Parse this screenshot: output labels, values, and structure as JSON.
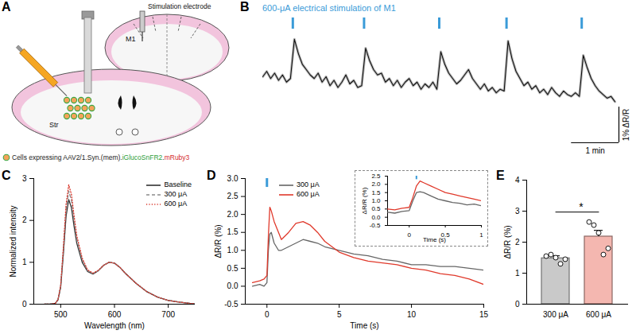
{
  "diagram": {
    "panel": "A",
    "electrode": "Stimulation electrode",
    "region_cortex": "M1",
    "region_striatum": "Str",
    "legend": [
      {
        "text": "Cells expressing AAV2/1.Syn.(mem).",
        "color": "#222222"
      },
      {
        "text": "iGlucoSnFR2",
        "color": "#2e9e3a"
      },
      {
        "text": ".",
        "color": "#222222"
      },
      {
        "text": "mRuby3",
        "color": "#d42a2a"
      }
    ]
  },
  "chart_data": [
    {
      "panel": "B",
      "type": "line",
      "color": "#111111",
      "tick_labels": false,
      "x": [
        0,
        5,
        10,
        15,
        20,
        25,
        30,
        35,
        40,
        45,
        50,
        55,
        60,
        65,
        70,
        75,
        80,
        85,
        90,
        95,
        100,
        105,
        110,
        115,
        120,
        125,
        130,
        135,
        140,
        145,
        150,
        155,
        160,
        165,
        170,
        175,
        180,
        185,
        190,
        195,
        200,
        205,
        210,
        215,
        220,
        225,
        230,
        235,
        240,
        245,
        250,
        255,
        260,
        265,
        270,
        275,
        280,
        285,
        290,
        295,
        300,
        305,
        310,
        315,
        320,
        325,
        330,
        335,
        340,
        345,
        350,
        355,
        360,
        365,
        370,
        375,
        380,
        385,
        390,
        395,
        400,
        405,
        410,
        415,
        420,
        425,
        430,
        435,
        440,
        445
      ],
      "values": [
        0.25,
        0.4,
        0.2,
        0.35,
        0.15,
        0.3,
        0.1,
        0.2,
        1.3,
        0.9,
        0.6,
        0.45,
        0.3,
        0.2,
        0.35,
        0.1,
        0.25,
        0,
        0.15,
        -0.05,
        0.1,
        0.3,
        0.05,
        0.15,
        -0.05,
        0,
        1.05,
        0.7,
        0.45,
        0.3,
        0.35,
        0.1,
        0.2,
        0,
        0.15,
        -0.05,
        0.1,
        0.2,
        0,
        0.1,
        -0.1,
        0.05,
        -0.05,
        0.1,
        -0.1,
        0.95,
        0.6,
        0.35,
        0.2,
        0.05,
        0.15,
        0.3,
        0.45,
        0.2,
        0.05,
        -0.1,
        0.05,
        -0.15,
        -0.05,
        -0.2,
        -0.1,
        -0.15,
        1.25,
        0.75,
        0.4,
        0.2,
        0,
        0.1,
        -0.1,
        0,
        -0.2,
        -0.1,
        -0.25,
        -0.05,
        -0.2,
        -0.3,
        -0.15,
        -0.25,
        -0.3,
        -0.2,
        -0.3,
        0.85,
        0.5,
        0.2,
        0,
        -0.15,
        -0.25,
        -0.35,
        -0.3,
        -0.45
      ],
      "xlim": [
        0,
        450
      ],
      "ylim": [
        -1.6,
        1.9
      ],
      "stimuli": {
        "x": [
          38,
          128,
          223,
          308,
          403
        ],
        "label": "600-μA electrical stimulation of M1",
        "color": "#3a9bd8"
      },
      "scale_bars": [
        {
          "axis": "x",
          "value": 60,
          "label": "1 min"
        },
        {
          "axis": "y",
          "value": 1,
          "label": "1% ΔR/R"
        }
      ]
    },
    {
      "panel": "C",
      "type": "line",
      "legend": "top-right",
      "x": [
        470,
        480,
        490,
        495,
        500,
        505,
        510,
        515,
        520,
        525,
        530,
        540,
        550,
        560,
        570,
        580,
        590,
        600,
        610,
        620,
        640,
        660,
        680,
        700,
        720,
        740,
        750
      ],
      "series": [
        {
          "name": "Baseline",
          "color": "#333333",
          "line_style": "solid",
          "values": [
            0,
            0,
            0.02,
            0.1,
            0.4,
            1.2,
            2.1,
            2.5,
            2.3,
            1.85,
            1.45,
            1,
            0.78,
            0.72,
            0.8,
            0.93,
            1,
            0.98,
            0.88,
            0.74,
            0.5,
            0.3,
            0.17,
            0.09,
            0.05,
            0.02,
            0.01
          ]
        },
        {
          "name": "300 μA",
          "color": "#8a8a8a",
          "line_style": "dashed",
          "values": [
            0,
            0,
            0.02,
            0.11,
            0.43,
            1.3,
            2.27,
            2.7,
            2.48,
            1.99,
            1.55,
            1.06,
            0.8,
            0.73,
            0.8,
            0.93,
            1,
            0.98,
            0.88,
            0.74,
            0.5,
            0.3,
            0.17,
            0.09,
            0.05,
            0.02,
            0.01
          ]
        },
        {
          "name": "600 μA",
          "color": "#d9362b",
          "line_style": "dotted",
          "values": [
            0,
            0,
            0.02,
            0.11,
            0.45,
            1.36,
            2.38,
            2.85,
            2.62,
            2.1,
            1.63,
            1.1,
            0.82,
            0.74,
            0.81,
            0.93,
            1,
            0.98,
            0.88,
            0.74,
            0.5,
            0.3,
            0.17,
            0.09,
            0.05,
            0.02,
            0.01
          ]
        }
      ],
      "xlim": [
        450,
        750
      ],
      "xticks": [
        500,
        600,
        700
      ],
      "ylim": [
        0,
        3
      ],
      "yticks": [
        0,
        1,
        2,
        3
      ],
      "x_label": "Wavelength (nm)",
      "y_label": "Normalized intensity"
    },
    {
      "panel": "D",
      "type": "line",
      "legend": "top-left",
      "x": [
        -1,
        -0.5,
        -0.2,
        0,
        0.1,
        0.2,
        0.3,
        0.5,
        0.8,
        1,
        1.5,
        2,
        2.5,
        3,
        3.5,
        4,
        5,
        6,
        7,
        8,
        9,
        10,
        11,
        12,
        13,
        14,
        15
      ],
      "series": [
        {
          "name": "300 μA",
          "color": "#666666",
          "line_style": "solid",
          "values": [
            0,
            0.05,
            0,
            0.1,
            1,
            1.45,
            1.5,
            1.2,
            1,
            1,
            1.1,
            1.2,
            1.3,
            1.25,
            1.2,
            1.1,
            1,
            0.9,
            0.85,
            0.75,
            0.7,
            0.6,
            0.6,
            0.55,
            0.55,
            0.5,
            0.45
          ]
        },
        {
          "name": "600 μA",
          "color": "#e0392b",
          "line_style": "solid",
          "values": [
            0.1,
            0.15,
            0.2,
            0.3,
            1.4,
            2.2,
            2.1,
            1.8,
            1.5,
            1.3,
            1.5,
            1.75,
            1.8,
            1.7,
            1.5,
            1.25,
            0.95,
            0.8,
            0.7,
            0.65,
            0.6,
            0.5,
            0.45,
            0.35,
            0.3,
            0.2,
            0.05
          ]
        }
      ],
      "xlim": [
        -1.5,
        15
      ],
      "xticks": [
        0,
        5,
        10,
        15
      ],
      "ylim": [
        -0.5,
        3
      ],
      "yticks": [
        -0.5,
        {
          "value": 0,
          "label": "0.0"
        },
        0.5,
        {
          "value": 1,
          "label": "1.0"
        },
        1.5,
        {
          "value": 2,
          "label": "2.0"
        },
        2.5,
        {
          "value": 3,
          "label": "3.0"
        }
      ],
      "x_label": "Time (s)",
      "y_label": "ΔR/R (%)",
      "stimuli": {
        "x": [
          0
        ],
        "color": "#3a9bd8"
      }
    },
    {
      "inset_of": "D",
      "type": "line",
      "x": [
        -0.3,
        -0.2,
        -0.1,
        0,
        0.05,
        0.1,
        0.15,
        0.2,
        0.3,
        0.4,
        0.5,
        0.6,
        0.7,
        0.8,
        0.9,
        1
      ],
      "series": [
        {
          "name": "300 μA",
          "color": "#666666",
          "line_style": "solid",
          "values": [
            0.3,
            0.25,
            0.35,
            0.4,
            1,
            1.5,
            1.55,
            1.5,
            1.3,
            1.1,
            1,
            0.9,
            0.85,
            0.75,
            0.8,
            0.7
          ]
        },
        {
          "name": "600 μA",
          "color": "#e0392b",
          "line_style": "solid",
          "values": [
            0.5,
            0.45,
            0.55,
            0.6,
            1.2,
            1.9,
            2.2,
            2.1,
            1.9,
            1.7,
            1.5,
            1.4,
            1.3,
            1.2,
            1.1,
            1
          ]
        }
      ],
      "xlim": [
        -0.3,
        1
      ],
      "xticks": [
        0,
        0.5,
        1
      ],
      "ylim": [
        -0.5,
        2.5
      ],
      "yticks": [
        -0.5,
        {
          "value": 0,
          "label": "0.0"
        },
        0.5,
        {
          "value": 1,
          "label": "1.0"
        },
        1.5,
        {
          "value": 2,
          "label": "2.0"
        },
        2.5
      ],
      "x_label": "Time (s)",
      "y_label": "ΔR/R (%)",
      "stimuli": {
        "x": [
          0.1
        ],
        "color": "#3a9bd8"
      }
    },
    {
      "panel": "E",
      "type": "bar",
      "categories": [
        "300 μA",
        "600 μA"
      ],
      "values": [
        1.48,
        2.18
      ],
      "errors": [
        0.08,
        0.2
      ],
      "points": [
        [
          1.55,
          1.6,
          1.5,
          1.3,
          1.45
        ],
        [
          2.65,
          2.55,
          2.3,
          1.6,
          1.8
        ]
      ],
      "colors": [
        "#c9c9c9",
        "#f4b7b0"
      ],
      "ylim": [
        0,
        4
      ],
      "yticks": [
        0,
        1,
        2,
        3,
        4
      ],
      "y_label": "ΔR/R (%)",
      "significance": "*"
    }
  ]
}
